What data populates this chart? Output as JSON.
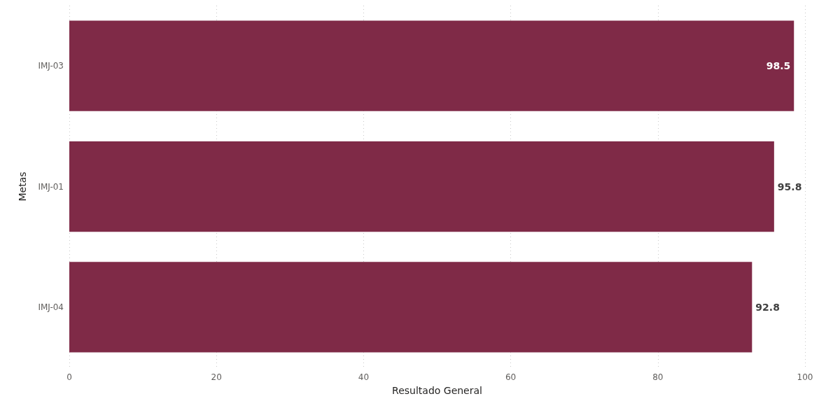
{
  "chart_data": {
    "type": "bar",
    "orientation": "horizontal",
    "xlabel": "Resultado General",
    "ylabel": "Metas",
    "categories": [
      "IMJ-03",
      "IMJ-01",
      "IMJ-04"
    ],
    "values": [
      98.5,
      95.8,
      92.8
    ],
    "color": "#7f2a47",
    "xlim": [
      0,
      100
    ],
    "xticks": [
      0,
      20,
      40,
      60,
      80,
      100
    ],
    "grid": "x",
    "data_labels": true
  }
}
